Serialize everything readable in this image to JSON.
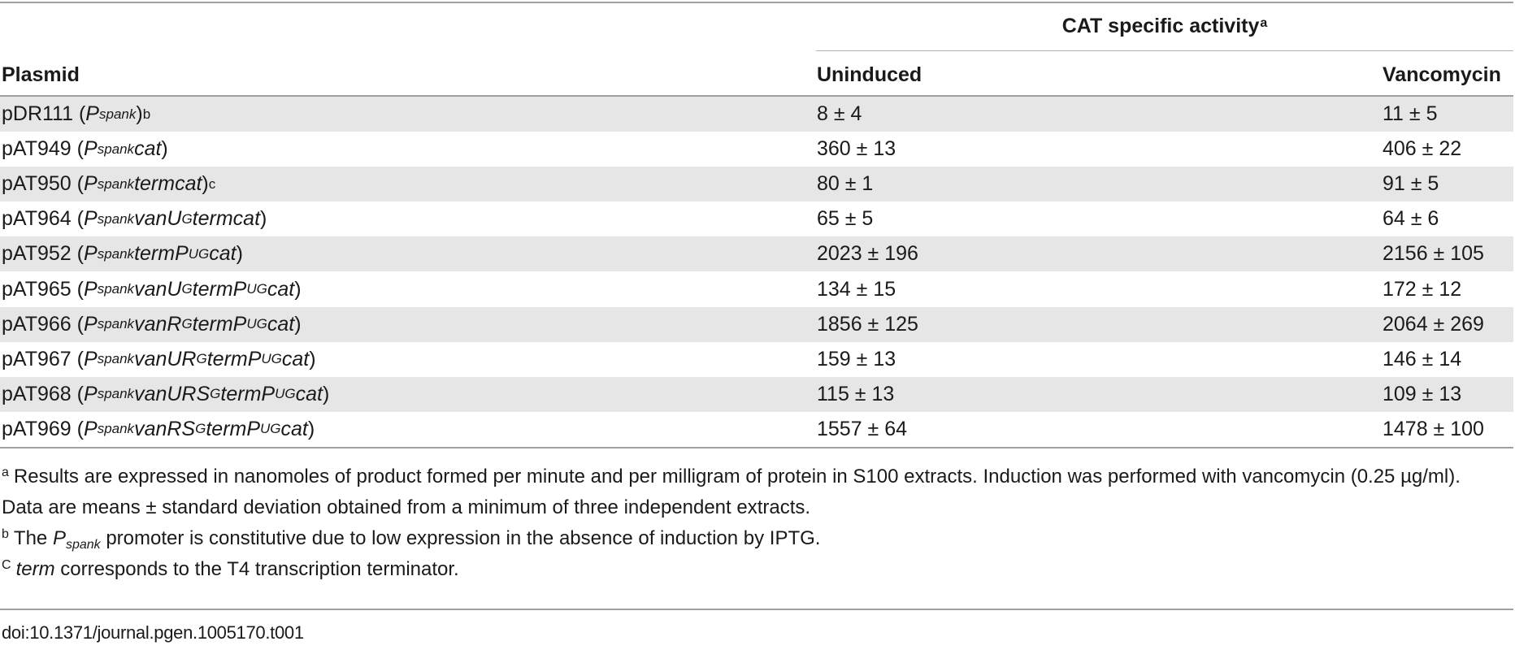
{
  "table": {
    "group_header": "CAT specific activity",
    "group_header_footnote": "a",
    "columns": [
      "Plasmid",
      "Uninduced",
      "Vancomycin"
    ],
    "rows": [
      {
        "name": "pDR111",
        "construct": [
          {
            "t": "P",
            "i": true
          },
          {
            "t": "spank",
            "i": true,
            "sub": true
          }
        ],
        "fn": "b",
        "uninduced": "8 ± 4",
        "vancomycin": "11 ± 5"
      },
      {
        "name": "pAT949",
        "construct": [
          {
            "t": "P",
            "i": true
          },
          {
            "t": "spank",
            "i": true,
            "sub": true
          },
          {
            "t": "cat",
            "i": true
          }
        ],
        "fn": "",
        "uninduced": "360 ± 13",
        "vancomycin": "406 ± 22"
      },
      {
        "name": "pAT950",
        "construct": [
          {
            "t": "P",
            "i": true
          },
          {
            "t": "spank",
            "i": true,
            "sub": true
          },
          {
            "t": "termcat",
            "i": true
          }
        ],
        "fn": "c",
        "uninduced": "80 ± 1",
        "vancomycin": "91 ± 5"
      },
      {
        "name": "pAT964",
        "construct": [
          {
            "t": "P",
            "i": true
          },
          {
            "t": "spank",
            "i": true,
            "sub": true
          },
          {
            "t": "vanU",
            "i": true
          },
          {
            "t": "G",
            "i": true,
            "sub": true
          },
          {
            "t": "termcat",
            "i": true
          }
        ],
        "fn": "",
        "uninduced": "65 ± 5",
        "vancomycin": "64 ± 6"
      },
      {
        "name": "pAT952",
        "construct": [
          {
            "t": "P",
            "i": true
          },
          {
            "t": "spank",
            "i": true,
            "sub": true
          },
          {
            "t": "termP",
            "i": true
          },
          {
            "t": "UG",
            "i": true,
            "sub": true
          },
          {
            "t": "cat",
            "i": true
          }
        ],
        "fn": "",
        "uninduced": "2023 ± 196",
        "vancomycin": "2156 ± 105"
      },
      {
        "name": "pAT965",
        "construct": [
          {
            "t": "P",
            "i": true
          },
          {
            "t": "spank",
            "i": true,
            "sub": true
          },
          {
            "t": "vanU",
            "i": true
          },
          {
            "t": "G",
            "i": true,
            "sub": true
          },
          {
            "t": "termP",
            "i": true
          },
          {
            "t": "UG",
            "i": true,
            "sub": true
          },
          {
            "t": "cat",
            "i": true
          }
        ],
        "fn": "",
        "uninduced": "134 ± 15",
        "vancomycin": "172 ± 12"
      },
      {
        "name": "pAT966",
        "construct": [
          {
            "t": "P",
            "i": true
          },
          {
            "t": "spank",
            "i": true,
            "sub": true
          },
          {
            "t": "vanR",
            "i": true
          },
          {
            "t": "G",
            "i": true,
            "sub": true
          },
          {
            "t": "termP",
            "i": true
          },
          {
            "t": "UG",
            "i": true,
            "sub": true
          },
          {
            "t": "cat",
            "i": true
          }
        ],
        "fn": "",
        "uninduced": "1856 ± 125",
        "vancomycin": "2064 ± 269"
      },
      {
        "name": "pAT967",
        "construct": [
          {
            "t": "P",
            "i": true
          },
          {
            "t": "spank",
            "i": true,
            "sub": true
          },
          {
            "t": "vanUR",
            "i": true
          },
          {
            "t": "G",
            "i": true,
            "sub": true
          },
          {
            "t": "termP",
            "i": true
          },
          {
            "t": "UG",
            "i": true,
            "sub": true
          },
          {
            "t": "cat",
            "i": true
          }
        ],
        "fn": "",
        "uninduced": "159 ± 13",
        "vancomycin": "146 ± 14"
      },
      {
        "name": "pAT968",
        "construct": [
          {
            "t": "P",
            "i": true
          },
          {
            "t": "spank",
            "i": true,
            "sub": true
          },
          {
            "t": "vanURS",
            "i": true
          },
          {
            "t": "G",
            "i": true,
            "sub": true
          },
          {
            "t": "termP",
            "i": true
          },
          {
            "t": "UG",
            "i": true,
            "sub": true
          },
          {
            "t": "cat",
            "i": true
          }
        ],
        "fn": "",
        "uninduced": "115 ± 13",
        "vancomycin": "109 ± 13"
      },
      {
        "name": "pAT969",
        "construct": [
          {
            "t": "P",
            "i": true
          },
          {
            "t": "spank",
            "i": true,
            "sub": true
          },
          {
            "t": "vanRS",
            "i": true
          },
          {
            "t": "G",
            "i": true,
            "sub": true
          },
          {
            "t": "termP",
            "i": true
          },
          {
            "t": "UG",
            "i": true,
            "sub": true
          },
          {
            "t": "cat",
            "i": true
          }
        ],
        "fn": "",
        "uninduced": "1557 ± 64",
        "vancomycin": "1478 ± 100"
      }
    ]
  },
  "footnotes": {
    "a_mark": "a",
    "a_text": "Results are expressed in nanomoles of product formed per minute and per milligram of protein in S100 extracts. Induction was performed with vancomycin (0.25 µg/ml). Data are means ± standard deviation obtained from a minimum of three independent extracts.",
    "b_mark": "b",
    "b_pre": "The ",
    "b_p": "P",
    "b_sub": "spank",
    "b_post": " promoter is constitutive due to low expression in the absence of induction by IPTG.",
    "c_mark": "C",
    "c_term": "term",
    "c_post": " corresponds to the T4 transcription terminator."
  },
  "doi": "doi:10.1371/journal.pgen.1005170.t001"
}
